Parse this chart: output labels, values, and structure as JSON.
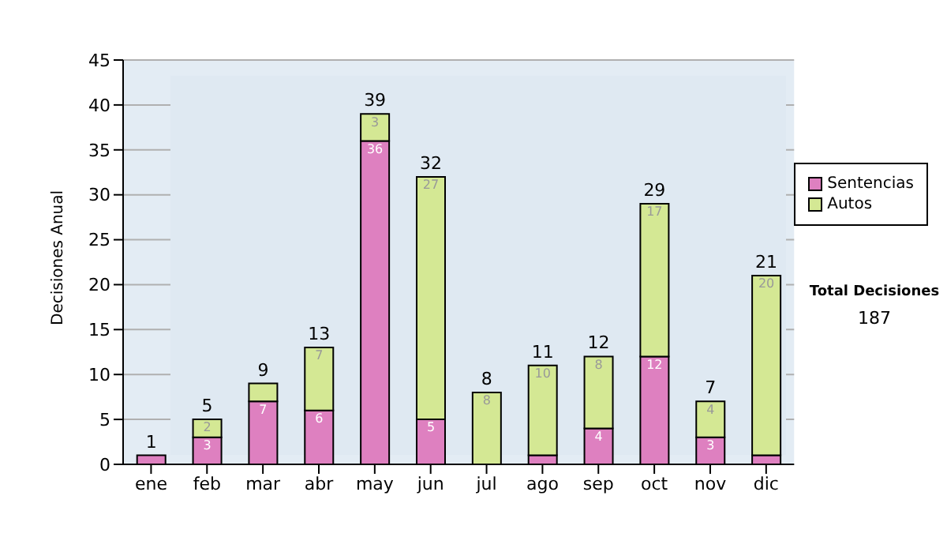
{
  "chart_data": {
    "type": "bar",
    "ylabel": "Decisiones Anual",
    "categories": [
      "ene",
      "feb",
      "mar",
      "abr",
      "may",
      "jun",
      "jul",
      "ago",
      "sep",
      "oct",
      "nov",
      "dic"
    ],
    "stacked": true,
    "series": [
      {
        "name": "Sentencias",
        "color": "#de80c0",
        "values": [
          1,
          3,
          7,
          6,
          36,
          5,
          0,
          1,
          4,
          12,
          3,
          1
        ],
        "value_labels": [
          null,
          "3",
          "7",
          "6",
          "36",
          "5",
          null,
          null,
          "4",
          "12",
          "3",
          null
        ]
      },
      {
        "name": "Autos",
        "color": "#d4e894",
        "values": [
          0,
          2,
          2,
          7,
          3,
          27,
          8,
          10,
          8,
          17,
          4,
          20
        ],
        "value_labels": [
          null,
          "2",
          null,
          "7",
          "3",
          "27",
          "8",
          "10",
          "8",
          "17",
          "4",
          "20"
        ]
      }
    ],
    "totals": [
      "1",
      "5",
      "9",
      "13",
      "39",
      "32",
      "8",
      "11",
      "12",
      "29",
      "7",
      "21"
    ],
    "ylim": [
      0,
      45
    ],
    "yticks": [
      0,
      5,
      10,
      15,
      20,
      25,
      30,
      35,
      40,
      45
    ],
    "grid": "y",
    "legend": "right",
    "annotations": [
      "Total Decisiones",
      "187"
    ]
  }
}
